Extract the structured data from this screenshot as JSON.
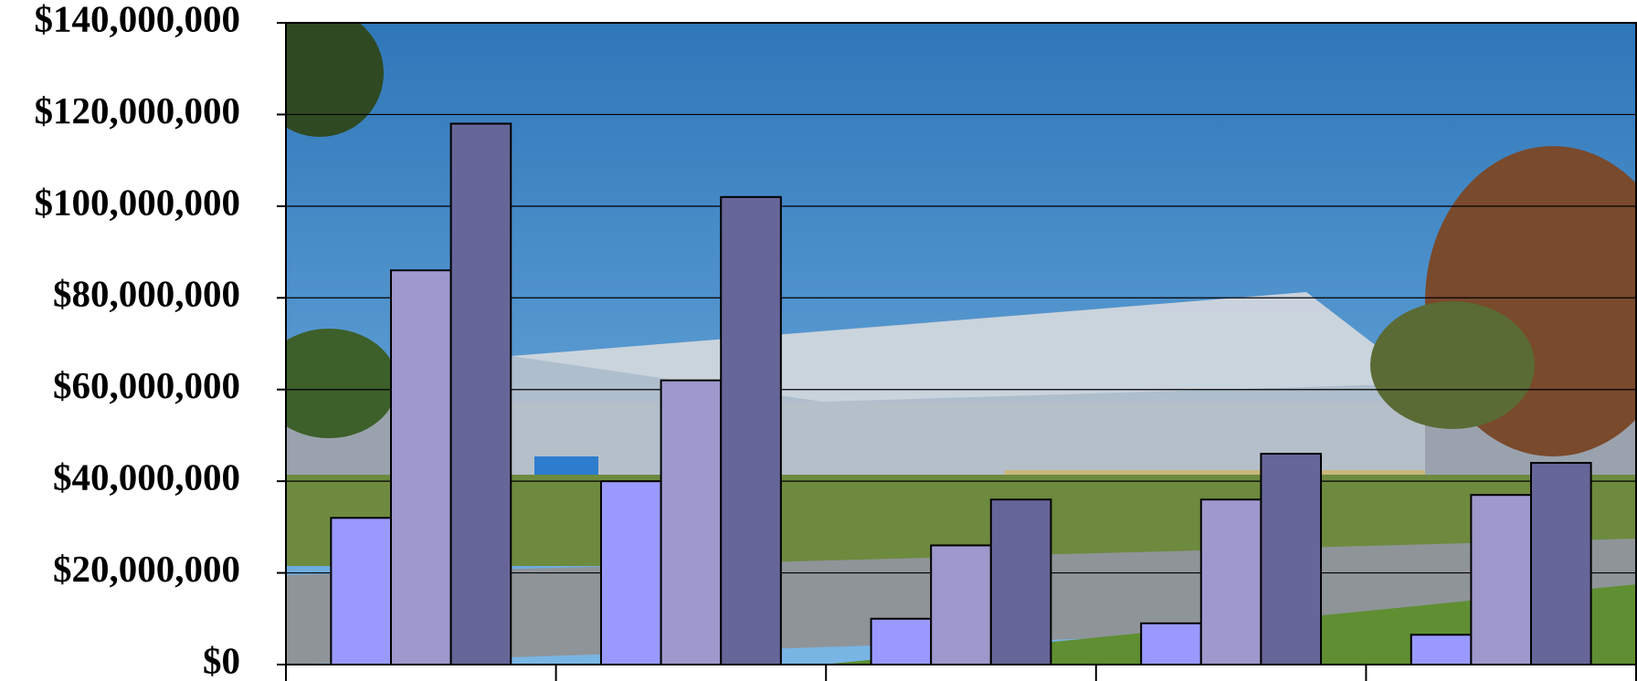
{
  "chart_data": {
    "type": "bar",
    "categories": [
      null,
      null,
      null,
      null,
      null
    ],
    "series": [
      {
        "color": "#9999ff",
        "values": [
          32000000,
          40000000,
          10000000,
          9000000,
          6500000
        ]
      },
      {
        "color": "#9d99cc",
        "values": [
          86000000,
          62000000,
          26000000,
          36000000,
          37000000
        ]
      },
      {
        "color": "#666699",
        "values": [
          118000000,
          102000000,
          36000000,
          46000000,
          44000000
        ]
      }
    ],
    "ylim": [
      0,
      140000000
    ],
    "yticks": [
      {
        "value": 0,
        "label": "$0"
      },
      {
        "value": 20000000,
        "label": "$20,000,000"
      },
      {
        "value": 40000000,
        "label": "$40,000,000"
      },
      {
        "value": 60000000,
        "label": "$60,000,000"
      },
      {
        "value": 80000000,
        "label": "$80,000,000"
      },
      {
        "value": 100000000,
        "label": "$100,000,000"
      },
      {
        "value": 120000000,
        "label": "$120,000,000"
      },
      {
        "value": 140000000,
        "label": "$140,000,000"
      }
    ],
    "grid": true
  }
}
